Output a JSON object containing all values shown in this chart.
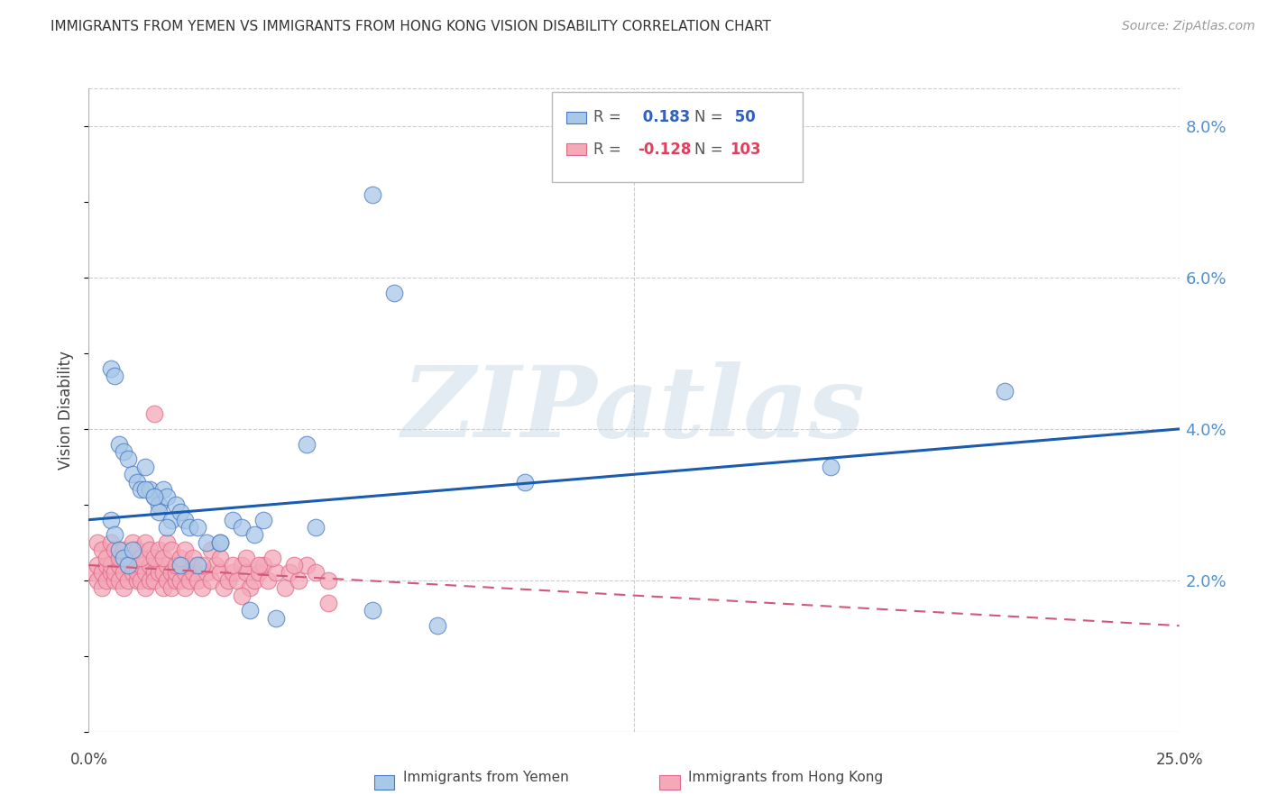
{
  "title": "IMMIGRANTS FROM YEMEN VS IMMIGRANTS FROM HONG KONG VISION DISABILITY CORRELATION CHART",
  "source": "Source: ZipAtlas.com",
  "ylabel": "Vision Disability",
  "xlim": [
    0.0,
    0.25
  ],
  "ylim": [
    0.0,
    0.085
  ],
  "color_yemen": "#a8c8e8",
  "color_hk": "#f4a8b8",
  "color_blue_edge": "#4878c0",
  "color_pink_edge": "#e06888",
  "color_trendline_yemen": "#1a5cb0",
  "color_trendline_hk": "#d05878",
  "watermark": "ZIPatlas",
  "yemen_x": [
    0.005,
    0.006,
    0.007,
    0.008,
    0.009,
    0.01,
    0.011,
    0.012,
    0.013,
    0.014,
    0.015,
    0.016,
    0.016,
    0.017,
    0.018,
    0.019,
    0.02,
    0.021,
    0.022,
    0.023,
    0.025,
    0.027,
    0.03,
    0.033,
    0.035,
    0.038,
    0.04,
    0.05,
    0.065,
    0.07,
    0.005,
    0.006,
    0.007,
    0.008,
    0.009,
    0.01,
    0.013,
    0.015,
    0.018,
    0.021,
    0.025,
    0.03,
    0.037,
    0.043,
    0.052,
    0.065,
    0.08,
    0.1,
    0.17,
    0.21
  ],
  "yemen_y": [
    0.048,
    0.047,
    0.038,
    0.037,
    0.036,
    0.034,
    0.033,
    0.032,
    0.035,
    0.032,
    0.031,
    0.03,
    0.029,
    0.032,
    0.031,
    0.028,
    0.03,
    0.029,
    0.028,
    0.027,
    0.027,
    0.025,
    0.025,
    0.028,
    0.027,
    0.026,
    0.028,
    0.038,
    0.071,
    0.058,
    0.028,
    0.026,
    0.024,
    0.023,
    0.022,
    0.024,
    0.032,
    0.031,
    0.027,
    0.022,
    0.022,
    0.025,
    0.016,
    0.015,
    0.027,
    0.016,
    0.014,
    0.033,
    0.035,
    0.045
  ],
  "hk_x": [
    0.001,
    0.002,
    0.002,
    0.003,
    0.003,
    0.004,
    0.004,
    0.005,
    0.005,
    0.006,
    0.006,
    0.007,
    0.007,
    0.008,
    0.008,
    0.009,
    0.009,
    0.01,
    0.01,
    0.011,
    0.011,
    0.012,
    0.012,
    0.013,
    0.013,
    0.014,
    0.014,
    0.015,
    0.015,
    0.016,
    0.016,
    0.017,
    0.017,
    0.018,
    0.018,
    0.019,
    0.019,
    0.02,
    0.02,
    0.021,
    0.021,
    0.022,
    0.022,
    0.023,
    0.023,
    0.024,
    0.025,
    0.026,
    0.027,
    0.028,
    0.029,
    0.03,
    0.031,
    0.032,
    0.033,
    0.034,
    0.035,
    0.036,
    0.037,
    0.038,
    0.039,
    0.04,
    0.041,
    0.043,
    0.045,
    0.046,
    0.048,
    0.05,
    0.052,
    0.055,
    0.002,
    0.003,
    0.004,
    0.005,
    0.006,
    0.007,
    0.008,
    0.009,
    0.01,
    0.011,
    0.012,
    0.013,
    0.014,
    0.015,
    0.016,
    0.017,
    0.018,
    0.019,
    0.02,
    0.021,
    0.022,
    0.024,
    0.026,
    0.028,
    0.03,
    0.033,
    0.036,
    0.039,
    0.042,
    0.047,
    0.015,
    0.035,
    0.055
  ],
  "hk_y": [
    0.021,
    0.02,
    0.022,
    0.019,
    0.021,
    0.02,
    0.022,
    0.021,
    0.022,
    0.02,
    0.021,
    0.022,
    0.02,
    0.021,
    0.019,
    0.022,
    0.02,
    0.021,
    0.022,
    0.02,
    0.021,
    0.02,
    0.022,
    0.021,
    0.019,
    0.02,
    0.022,
    0.021,
    0.02,
    0.022,
    0.021,
    0.019,
    0.021,
    0.02,
    0.022,
    0.021,
    0.019,
    0.02,
    0.021,
    0.022,
    0.02,
    0.021,
    0.019,
    0.02,
    0.022,
    0.021,
    0.02,
    0.019,
    0.021,
    0.02,
    0.022,
    0.021,
    0.019,
    0.02,
    0.021,
    0.02,
    0.022,
    0.021,
    0.019,
    0.02,
    0.021,
    0.022,
    0.02,
    0.021,
    0.019,
    0.021,
    0.02,
    0.022,
    0.021,
    0.02,
    0.025,
    0.024,
    0.023,
    0.025,
    0.024,
    0.023,
    0.024,
    0.023,
    0.025,
    0.024,
    0.023,
    0.025,
    0.024,
    0.023,
    0.024,
    0.023,
    0.025,
    0.024,
    0.022,
    0.023,
    0.024,
    0.023,
    0.022,
    0.024,
    0.023,
    0.022,
    0.023,
    0.022,
    0.023,
    0.022,
    0.042,
    0.018,
    0.017
  ],
  "yemen_trend_x0": 0.0,
  "yemen_trend_y0": 0.028,
  "yemen_trend_x1": 0.25,
  "yemen_trend_y1": 0.04,
  "hk_trend_x0": 0.0,
  "hk_trend_y0": 0.022,
  "hk_trend_x1": 0.25,
  "hk_trend_y1": 0.014,
  "yticks": [
    0.02,
    0.04,
    0.06,
    0.08
  ],
  "ytick_labels": [
    "2.0%",
    "4.0%",
    "6.0%",
    "8.0%"
  ],
  "xtick_left_label": "0.0%",
  "xtick_right_label": "25.0%",
  "legend_sq1_color": "#a8c8e8",
  "legend_sq1_edge": "#4878c0",
  "legend_sq2_color": "#f4a8b8",
  "legend_sq2_edge": "#e06888",
  "legend_r1_text": "R = ",
  "legend_r1_val": " 0.183",
  "legend_n1_text": "N = ",
  "legend_n1_val": " 50",
  "legend_r2_text": "R = ",
  "legend_r2_val": "-0.128",
  "legend_n2_text": "N = ",
  "legend_n2_val": "103",
  "legend_color_val1": "#3060c0",
  "legend_color_val2": "#e04060",
  "bottom_label1": "Immigrants from Yemen",
  "bottom_label2": "Immigrants from Hong Kong"
}
